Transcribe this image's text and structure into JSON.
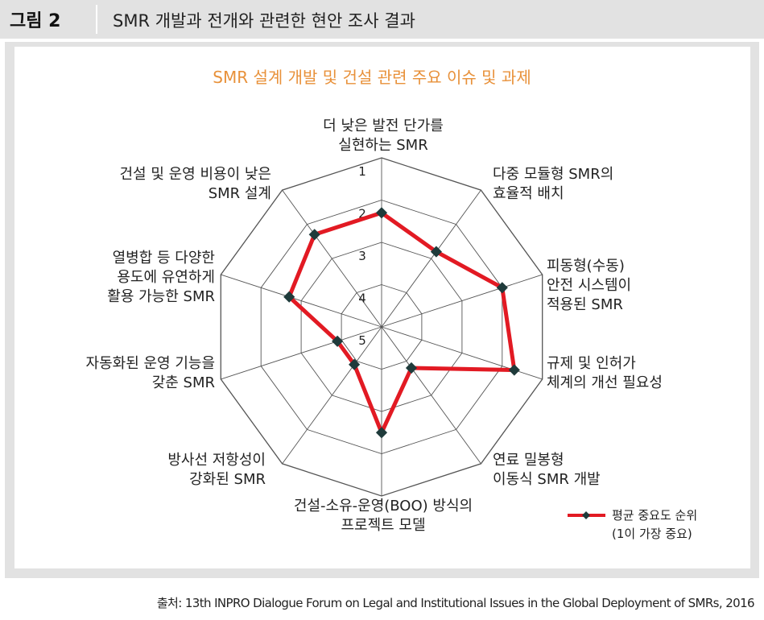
{
  "header": {
    "figure_label": "그림 2",
    "title": "SMR 개발과 전개와 관련한 현안 조사 결과"
  },
  "source": "출처: 13th INPRO Dialogue Forum on Legal and Institutional Issues in the Global Deployment of SMRs, 2016",
  "colors": {
    "series": "#e21a23",
    "marker": "#1f3b3b",
    "title": "#e8913a",
    "grid": "#555555",
    "panel": "#e2e2e2"
  },
  "chart_data": {
    "type": "radar",
    "title": "SMR 설계 개발 및 건설 관련 주요 이슈 및 과제",
    "axes": [
      [
        "더 낮은 발전 단가를",
        "실현하는 SMR"
      ],
      [
        "다중 모듈형 SMR의",
        "효율적 배치"
      ],
      [
        "피동형(수동)",
        "안전 시스템이",
        "적용된 SMR"
      ],
      [
        "규제 및 인허가",
        "체계의 개선 필요성"
      ],
      [
        "연료 밀봉형",
        "이동식 SMR 개발"
      ],
      [
        "건설-소유-운영(BOO) 방식의",
        "프로젝트 모델"
      ],
      [
        "방사선 저항성이",
        "강화된 SMR"
      ],
      [
        "자동화된 운영 기능을",
        "갖춘 SMR"
      ],
      [
        "열병합 등 다양한",
        "용도에 유연하게",
        "활용 가능한 SMR"
      ],
      [
        "건설 및 운영 비용이 낮은",
        "SMR 설계"
      ]
    ],
    "scale": {
      "min": 1,
      "max": 5,
      "ticks": [
        "1",
        "2",
        "3",
        "4",
        "5"
      ],
      "inverted": true,
      "note": "1 at outer ring, 5 at centre"
    },
    "series": [
      {
        "name": "평균 중요도 순위",
        "values": [
          2.3,
          2.8,
          2.0,
          1.7,
          3.8,
          2.5,
          3.9,
          3.9,
          2.7,
          2.3
        ]
      }
    ],
    "legend": {
      "position": "bottom-right",
      "lines": [
        "평균 중요도 순위",
        "(1이 가장 중요)"
      ]
    },
    "grid": true
  }
}
